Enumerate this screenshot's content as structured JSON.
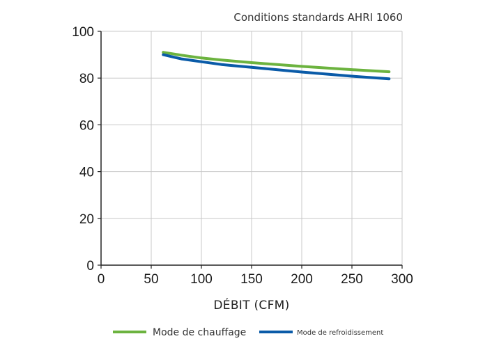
{
  "chart_data": {
    "type": "line",
    "title": "Conditions standards AHRI 1060",
    "xlabel": "DÉBIT (CFM)",
    "ylabel": "",
    "xlim": [
      0,
      300
    ],
    "ylim": [
      0,
      100
    ],
    "xticks": [
      0,
      50,
      100,
      150,
      200,
      250,
      300
    ],
    "yticks": [
      0,
      20,
      40,
      60,
      80,
      100
    ],
    "xtick_labels": [
      "0",
      "50",
      "100",
      "150",
      "200",
      "250",
      "300"
    ],
    "ytick_labels": [
      "0",
      "20",
      "40",
      "60",
      "80",
      "100"
    ],
    "grid": true,
    "legend": "bottom",
    "series": [
      {
        "name": "Mode de chauffage",
        "color": "#6cb33f",
        "x": [
          62,
          80,
          100,
          120,
          150,
          200,
          250,
          287
        ],
        "y": [
          91,
          89.8,
          88.6,
          87.7,
          86.6,
          85.0,
          83.6,
          82.7
        ]
      },
      {
        "name": "Mode de refroidissement",
        "color": "#0a5ba8",
        "x": [
          62,
          80,
          100,
          120,
          150,
          200,
          250,
          287
        ],
        "y": [
          90,
          88.2,
          87.0,
          85.8,
          84.6,
          82.6,
          80.8,
          79.7
        ]
      }
    ]
  }
}
